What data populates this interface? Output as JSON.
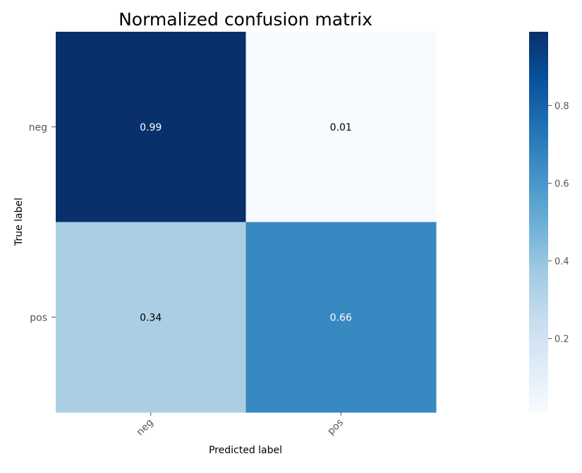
{
  "chart_data": {
    "type": "heatmap",
    "title": "Normalized confusion matrix",
    "xlabel": "Predicted label",
    "ylabel": "True label",
    "x_categories": [
      "neg",
      "pos"
    ],
    "y_categories": [
      "neg",
      "pos"
    ],
    "values": [
      [
        0.99,
        0.01
      ],
      [
        0.34,
        0.66
      ]
    ],
    "colormap": "Blues",
    "colorbar": {
      "range": [
        0.01,
        0.99
      ],
      "ticks": [
        0.2,
        0.4,
        0.6,
        0.8
      ],
      "tick_labels": [
        "0.2",
        "0.4",
        "0.6",
        "0.8"
      ]
    },
    "grid": false
  }
}
